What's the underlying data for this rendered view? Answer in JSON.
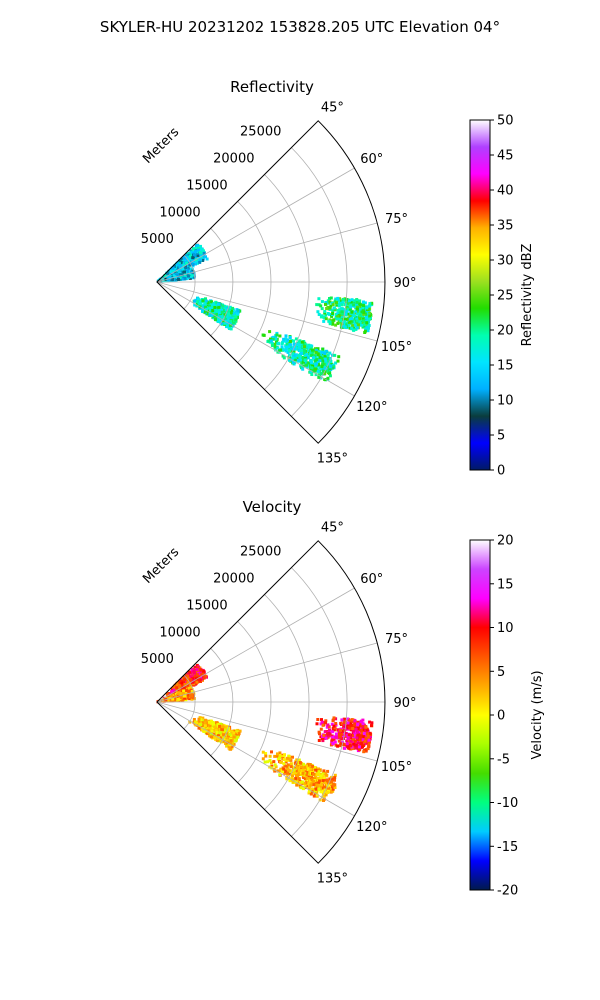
{
  "figure": {
    "title": "SKYLER-HU  20231202  153828.205 UTC Elevation 04°"
  },
  "colors": {
    "reflectivity_stops": [
      "#001a66",
      "#0000ff",
      "#0a3d3d",
      "#00b0ff",
      "#00e5ff",
      "#00ffb0",
      "#22dd00",
      "#9be020",
      "#ffff00",
      "#ffb000",
      "#ff0000",
      "#ff00ff",
      "#b040ff",
      "#ffffff"
    ],
    "velocity_stops": [
      "#001a4d",
      "#0000ff",
      "#00ccff",
      "#00ff80",
      "#44dd00",
      "#aaff00",
      "#ffff00",
      "#ffaa00",
      "#ff5500",
      "#ff0000",
      "#ff00ff",
      "#cc44ff",
      "#ffffff"
    ]
  },
  "chart_data": [
    {
      "type": "heatmap",
      "projection": "polar-sector",
      "title": "Reflectivity",
      "range_label": "Meters",
      "range_ticks": [
        5000,
        10000,
        15000,
        20000,
        25000
      ],
      "range_max": 30000,
      "azimuth_range": [
        45,
        135
      ],
      "azimuth_ticks": [
        "45°",
        "60°",
        "75°",
        "90°",
        "105°",
        "120°",
        "135°"
      ],
      "grid": true,
      "colorbar": {
        "label": "Reflectivity dBZ",
        "min": 0,
        "max": 50,
        "ticks": [
          0,
          5,
          10,
          15,
          20,
          25,
          30,
          35,
          40,
          45,
          50
        ]
      },
      "echoes": [
        {
          "az": [
            47,
            66
          ],
          "r": [
            0,
            7400
          ],
          "value": 14
        },
        {
          "az": [
            68,
            84
          ],
          "r": [
            0,
            5000
          ],
          "value": 13
        },
        {
          "az": [
            95,
            104
          ],
          "r": [
            21000,
            28500
          ],
          "value": 20
        },
        {
          "az": [
            109,
            123
          ],
          "r": [
            5000,
            11600
          ],
          "value": 18
        },
        {
          "az": [
            112,
            121
          ],
          "r": [
            15000,
            26000
          ],
          "value": 19
        }
      ]
    },
    {
      "type": "heatmap",
      "projection": "polar-sector",
      "title": "Velocity",
      "range_label": "Meters",
      "range_ticks": [
        5000,
        10000,
        15000,
        20000,
        25000
      ],
      "range_max": 30000,
      "azimuth_range": [
        45,
        135
      ],
      "azimuth_ticks": [
        "45°",
        "60°",
        "75°",
        "90°",
        "105°",
        "120°",
        "135°"
      ],
      "grid": true,
      "colorbar": {
        "label": "Velocity (m/s)",
        "min": -20,
        "max": 20,
        "ticks": [
          -20,
          -15,
          -10,
          -5,
          0,
          5,
          10,
          15,
          20
        ]
      },
      "echoes": [
        {
          "az": [
            47,
            66
          ],
          "r": [
            1000,
            7400
          ],
          "value": 9
        },
        {
          "az": [
            66,
            86
          ],
          "r": [
            0,
            5000
          ],
          "value": 4
        },
        {
          "az": [
            95,
            104
          ],
          "r": [
            21000,
            28500
          ],
          "value": 10
        },
        {
          "az": [
            109,
            123
          ],
          "r": [
            5000,
            11600
          ],
          "value": 2
        },
        {
          "az": [
            112,
            121
          ],
          "r": [
            15000,
            26000
          ],
          "value": 3
        }
      ]
    }
  ]
}
